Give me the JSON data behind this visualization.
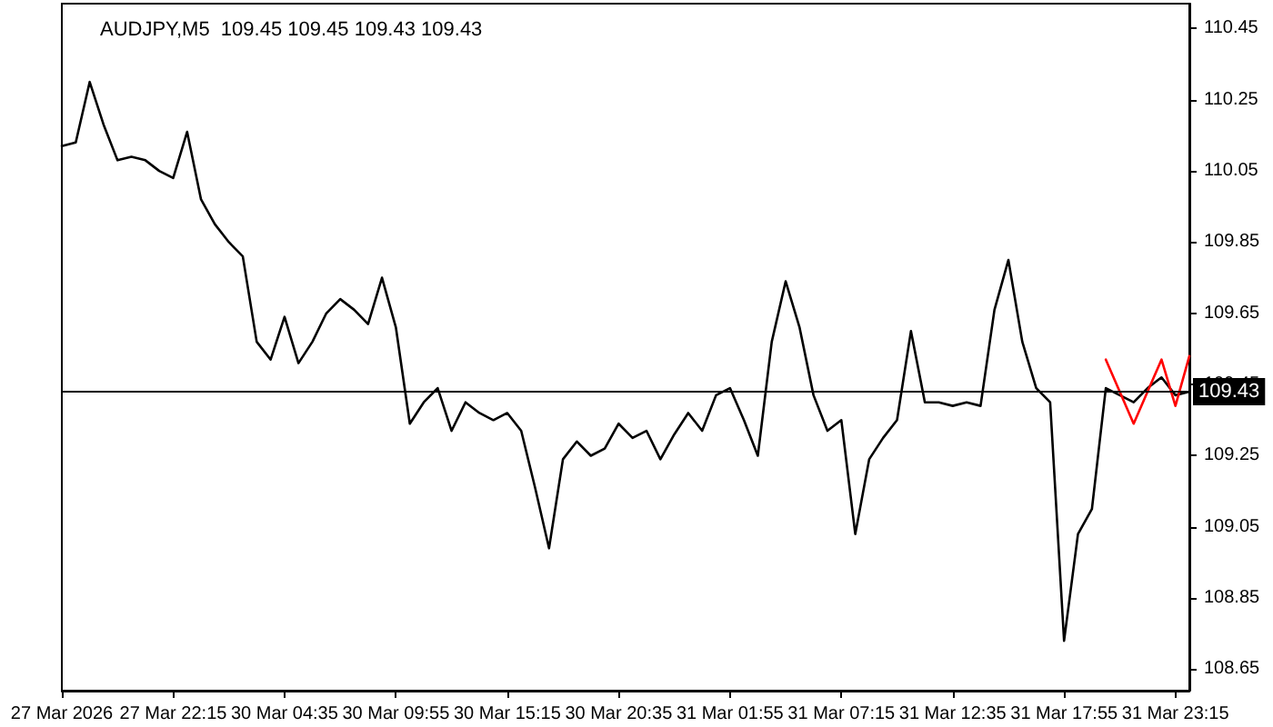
{
  "chart_data": {
    "type": "line",
    "title": "AUDJPY,M5  109.45 109.45 109.43 109.43",
    "categories": [
      "27 Mar 2026",
      null,
      null,
      null,
      null,
      null,
      null,
      null,
      "27 Mar 22:15",
      null,
      null,
      null,
      null,
      null,
      null,
      null,
      "30 Mar 04:35",
      null,
      null,
      null,
      null,
      null,
      null,
      null,
      "30 Mar 09:55",
      null,
      null,
      null,
      null,
      null,
      null,
      null,
      "30 Mar 15:15",
      null,
      null,
      null,
      null,
      null,
      null,
      null,
      "30 Mar 20:35",
      null,
      null,
      null,
      null,
      null,
      null,
      null,
      "31 Mar 01:55",
      null,
      null,
      null,
      null,
      null,
      null,
      null,
      "31 Mar 07:15",
      null,
      null,
      null,
      null,
      null,
      null,
      null,
      "31 Mar 12:35",
      null,
      null,
      null,
      null,
      null,
      null,
      null,
      "31 Mar 17:55",
      null,
      null,
      null,
      null,
      null,
      null,
      null,
      "31 Mar 23:15",
      null
    ],
    "ylim": [
      108.59,
      110.52
    ],
    "yticks": [
      108.65,
      108.85,
      109.05,
      109.25,
      109.45,
      109.65,
      109.85,
      110.05,
      110.25,
      110.45
    ],
    "grid": false,
    "marker": "none",
    "line_style": "solid",
    "series": [
      {
        "color": "#000000",
        "values": [
          110.12,
          110.13,
          110.3,
          110.18,
          110.08,
          110.09,
          110.08,
          110.05,
          110.03,
          110.16,
          109.97,
          109.9,
          109.85,
          109.81,
          109.57,
          109.52,
          109.64,
          109.51,
          109.57,
          109.65,
          109.69,
          109.66,
          109.62,
          109.75,
          109.61,
          109.34,
          109.4,
          109.44,
          109.32,
          109.4,
          109.37,
          109.35,
          109.37,
          109.32,
          109.16,
          108.99,
          109.24,
          109.29,
          109.25,
          109.27,
          109.34,
          109.3,
          109.32,
          109.24,
          109.31,
          109.37,
          109.32,
          109.42,
          109.44,
          109.35,
          109.25,
          109.57,
          109.74,
          109.61,
          109.42,
          109.32,
          109.35,
          109.03,
          109.24,
          109.3,
          109.35,
          109.6,
          109.4,
          109.4,
          109.39,
          109.4,
          109.39,
          109.66,
          109.8,
          109.57,
          109.44,
          109.4,
          108.73,
          109.03,
          109.1,
          109.44,
          109.42,
          109.4,
          109.44,
          109.47,
          109.42,
          109.43
        ]
      },
      {
        "color": "#ff0000",
        "values": [
          null,
          null,
          null,
          null,
          null,
          null,
          null,
          null,
          null,
          null,
          null,
          null,
          null,
          null,
          null,
          null,
          null,
          null,
          null,
          null,
          null,
          null,
          null,
          null,
          null,
          null,
          null,
          null,
          null,
          null,
          null,
          null,
          null,
          null,
          null,
          null,
          null,
          null,
          null,
          null,
          null,
          null,
          null,
          null,
          null,
          null,
          null,
          null,
          null,
          null,
          null,
          null,
          null,
          null,
          null,
          null,
          null,
          null,
          null,
          null,
          null,
          null,
          null,
          null,
          null,
          null,
          null,
          null,
          null,
          null,
          null,
          null,
          null,
          null,
          null,
          109.52,
          null,
          109.34,
          null,
          109.52,
          109.39,
          109.53
        ]
      }
    ],
    "ref_lines": [
      {
        "axis": "y",
        "value": 109.43,
        "label": "109.43",
        "color": "#000000"
      }
    ]
  }
}
